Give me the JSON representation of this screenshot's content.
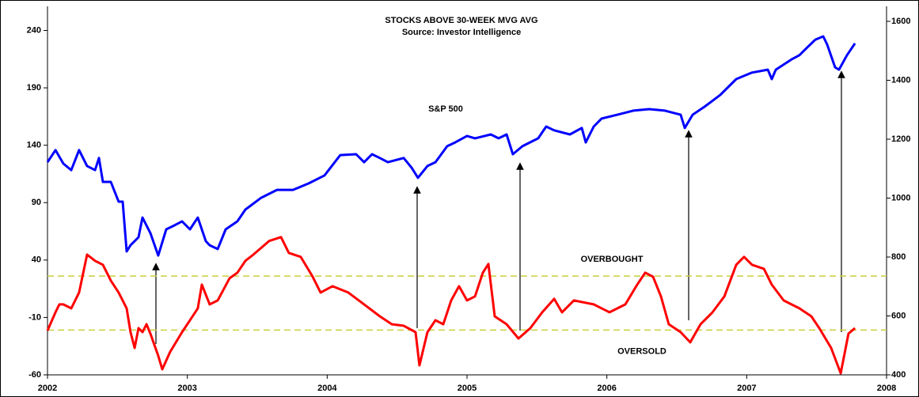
{
  "chart_data": {
    "type": "line",
    "title": "STOCKS ABOVE 30-WEEK MVG AVG",
    "subtitle": "Source: Investor Intelligence",
    "annotations": [
      "S&P 500"
    ],
    "xlim": [
      2002,
      2008
    ],
    "xticks": [
      2002,
      2003,
      2004,
      2005,
      2006,
      2007,
      2008
    ],
    "ylim": [
      -60,
      261
    ],
    "yticks": [
      -60,
      -10,
      40,
      90,
      140,
      190,
      240
    ],
    "y2lim": [
      400,
      1651
    ],
    "y2ticks": [
      400,
      600,
      800,
      1000,
      1200,
      1400,
      1600
    ],
    "reference_lines": [
      {
        "label": "OVERBOUGHT",
        "value": 26,
        "color": "#c8d03c"
      },
      {
        "label": "OVERSOLD",
        "value": -21,
        "color": "#c8d03c"
      }
    ],
    "series": [
      {
        "name": "S&P 500",
        "color": "#0000ff",
        "axis": "y2",
        "x": [
          2002.0,
          2002.057,
          2002.113,
          2002.17,
          2002.226,
          2002.283,
          2002.34,
          2002.368,
          2002.396,
          2002.453,
          2002.509,
          2002.538,
          2002.566,
          2002.594,
          2002.651,
          2002.679,
          2002.736,
          2002.792,
          2002.849,
          2002.906,
          2002.962,
          2003.019,
          2003.075,
          2003.132,
          2003.16,
          2003.217,
          2003.274,
          2003.358,
          2003.415,
          2003.528,
          2003.641,
          2003.755,
          2003.868,
          2003.981,
          2004.094,
          2004.207,
          2004.264,
          2004.321,
          2004.377,
          2004.434,
          2004.547,
          2004.604,
          2004.649,
          2004.717,
          2004.774,
          2004.858,
          2004.915,
          2005.0,
          2005.057,
          2005.17,
          2005.226,
          2005.283,
          2005.328,
          2005.396,
          2005.509,
          2005.566,
          2005.623,
          2005.736,
          2005.821,
          2005.849,
          2005.906,
          2005.962,
          2006.075,
          2006.189,
          2006.302,
          2006.415,
          2006.528,
          2006.557,
          2006.613,
          2006.698,
          2006.811,
          2006.925,
          2007.038,
          2007.151,
          2007.179,
          2007.208,
          2007.321,
          2007.377,
          2007.434,
          2007.491,
          2007.547,
          2007.575,
          2007.632,
          2007.66,
          2007.717,
          2007.774
        ],
        "values": [
          1122,
          1163,
          1117,
          1095,
          1163,
          1109,
          1095,
          1136,
          1055,
          1055,
          988,
          988,
          819,
          840,
          867,
          934,
          881,
          805,
          894,
          907,
          921,
          894,
          934,
          854,
          840,
          827,
          894,
          921,
          961,
          1001,
          1028,
          1028,
          1050,
          1077,
          1146,
          1149,
          1122,
          1149,
          1136,
          1122,
          1136,
          1103,
          1069,
          1109,
          1122,
          1176,
          1189,
          1211,
          1203,
          1216,
          1203,
          1216,
          1149,
          1176,
          1203,
          1243,
          1230,
          1216,
          1238,
          1189,
          1243,
          1270,
          1283,
          1297,
          1302,
          1297,
          1283,
          1238,
          1283,
          1310,
          1350,
          1404,
          1426,
          1436,
          1404,
          1436,
          1471,
          1485,
          1512,
          1538,
          1549,
          1522,
          1444,
          1436,
          1485,
          1525
        ]
      },
      {
        "name": "Stocks above 30-week MVG AVG",
        "color": "#ff0000",
        "axis": "y",
        "x": [
          2002.0,
          2002.057,
          2002.085,
          2002.113,
          2002.17,
          2002.226,
          2002.283,
          2002.34,
          2002.396,
          2002.453,
          2002.509,
          2002.566,
          2002.594,
          2002.623,
          2002.651,
          2002.679,
          2002.708,
          2002.736,
          2002.792,
          2002.821,
          2002.877,
          2002.962,
          2003.019,
          2003.075,
          2003.104,
          2003.16,
          2003.217,
          2003.302,
          2003.358,
          2003.415,
          2003.472,
          2003.585,
          2003.67,
          2003.726,
          2003.811,
          2003.896,
          2003.953,
          2004.038,
          2004.151,
          2004.264,
          2004.377,
          2004.462,
          2004.547,
          2004.632,
          2004.66,
          2004.717,
          2004.774,
          2004.83,
          2004.887,
          2004.943,
          2005.0,
          2005.057,
          2005.113,
          2005.153,
          2005.198,
          2005.283,
          2005.368,
          2005.453,
          2005.538,
          2005.623,
          2005.679,
          2005.764,
          2005.906,
          2006.019,
          2006.132,
          2006.217,
          2006.274,
          2006.33,
          2006.387,
          2006.443,
          2006.528,
          2006.596,
          2006.67,
          2006.755,
          2006.84,
          2006.925,
          2006.981,
          2007.038,
          2007.123,
          2007.179,
          2007.264,
          2007.377,
          2007.462,
          2007.519,
          2007.604,
          2007.672,
          2007.728,
          2007.774
        ],
        "values": [
          -21.4,
          -5.5,
          1.4,
          1.4,
          -2.1,
          11.7,
          44.8,
          39.3,
          35.9,
          22.1,
          11.7,
          -2.1,
          -22.8,
          -36.6,
          -19.3,
          -22.8,
          -15.9,
          -24.1,
          -43.4,
          -55.2,
          -40,
          -22.8,
          -12.4,
          -2.1,
          18.6,
          1.4,
          4.8,
          24.1,
          29,
          39.3,
          44.8,
          56.6,
          60,
          46.2,
          42.8,
          25.5,
          11.7,
          17.2,
          11.7,
          1.4,
          -9,
          -15.9,
          -17.2,
          -22.8,
          -51.7,
          -22.8,
          -12.4,
          -15.9,
          4.8,
          17.2,
          4.8,
          8.3,
          29,
          36.6,
          -9,
          -15.9,
          -28.3,
          -19.3,
          -5.5,
          6.2,
          -5.5,
          4.8,
          1.4,
          -5.5,
          1.4,
          18.6,
          29,
          25.5,
          8.3,
          -15.9,
          -22.8,
          -31.7,
          -15.9,
          -5.5,
          8.3,
          35.9,
          42.8,
          35.9,
          32.4,
          18.6,
          4.8,
          -2.1,
          -9,
          -19.3,
          -36.6,
          -58.6,
          -24.1,
          -19.3
        ]
      }
    ]
  }
}
